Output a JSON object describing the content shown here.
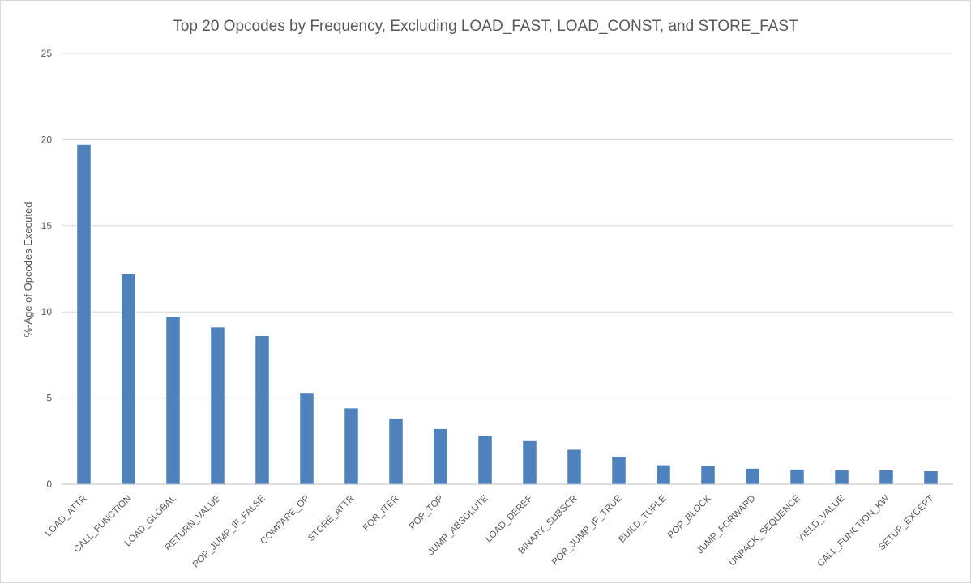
{
  "chart_data": {
    "type": "bar",
    "title": "Top 20 Opcodes by Frequency, Excluding LOAD_FAST, LOAD_CONST, and STORE_FAST",
    "xlabel": "",
    "ylabel": "%-Age of Opcodes Executed",
    "ylim": [
      0,
      25
    ],
    "yticks": [
      0,
      5,
      10,
      15,
      20,
      25
    ],
    "grid": true,
    "legend": "none",
    "bar_color": "#4f81bd",
    "categories": [
      "LOAD_ATTR",
      "CALL_FUNCTION",
      "LOAD_GLOBAL",
      "RETURN_VALUE",
      "POP_JUMP_IF_FALSE",
      "COMPARE_OP",
      "STORE_ATTR",
      "FOR_ITER",
      "POP_TOP",
      "JUMP_ABSOLUTE",
      "LOAD_DEREF",
      "BINARY_SUBSCR",
      "POP_JUMP_IF_TRUE",
      "BUILD_TUPLE",
      "POP_BLOCK",
      "JUMP_FORWARD",
      "UNPACK_SEQUENCE",
      "YIELD_VALUE",
      "CALL_FUNCTION_KW",
      "SETUP_EXCEPT"
    ],
    "values": [
      19.7,
      12.2,
      9.7,
      9.1,
      8.6,
      5.3,
      4.4,
      3.8,
      3.2,
      2.8,
      2.5,
      2.0,
      1.6,
      1.1,
      1.05,
      0.9,
      0.85,
      0.8,
      0.8,
      0.75
    ]
  }
}
